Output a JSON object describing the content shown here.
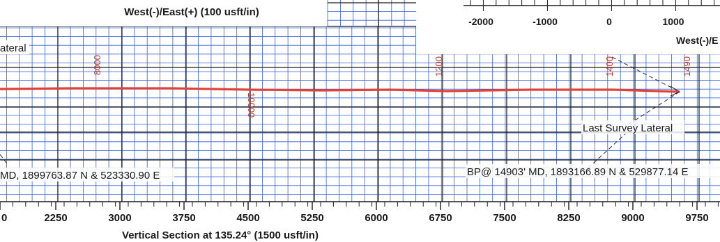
{
  "top_axis": {
    "title": "West(-)/East(+) (100 usft/in)"
  },
  "inset": {
    "ticks": [
      "-2000",
      "-1000",
      "0",
      "1000"
    ],
    "axis_label": "West(-)/E"
  },
  "section": {
    "left_label": "ateral",
    "left_coord_label": "MD, 1899763.87 N & 523330.90 E",
    "survey_label": "Last Survey Lateral",
    "bp_label": "BP@ 14903' MD, 1893166.89 N & 529877.14 E",
    "md_marks": [
      "8000",
      "10000",
      "1200",
      "1400",
      "1490"
    ]
  },
  "bottom_axis": {
    "ticks": [
      "0",
      "2250",
      "3000",
      "3750",
      "4500",
      "5250",
      "6000",
      "6750",
      "7500",
      "8250",
      "9000",
      "9750"
    ],
    "title": "Vertical Section at 135.24° (1500 usft/in)"
  },
  "colors": {
    "grid_minor": "#3a5fd6",
    "grid_major": "#1a1a1a",
    "wellpath": "#e0413a"
  }
}
